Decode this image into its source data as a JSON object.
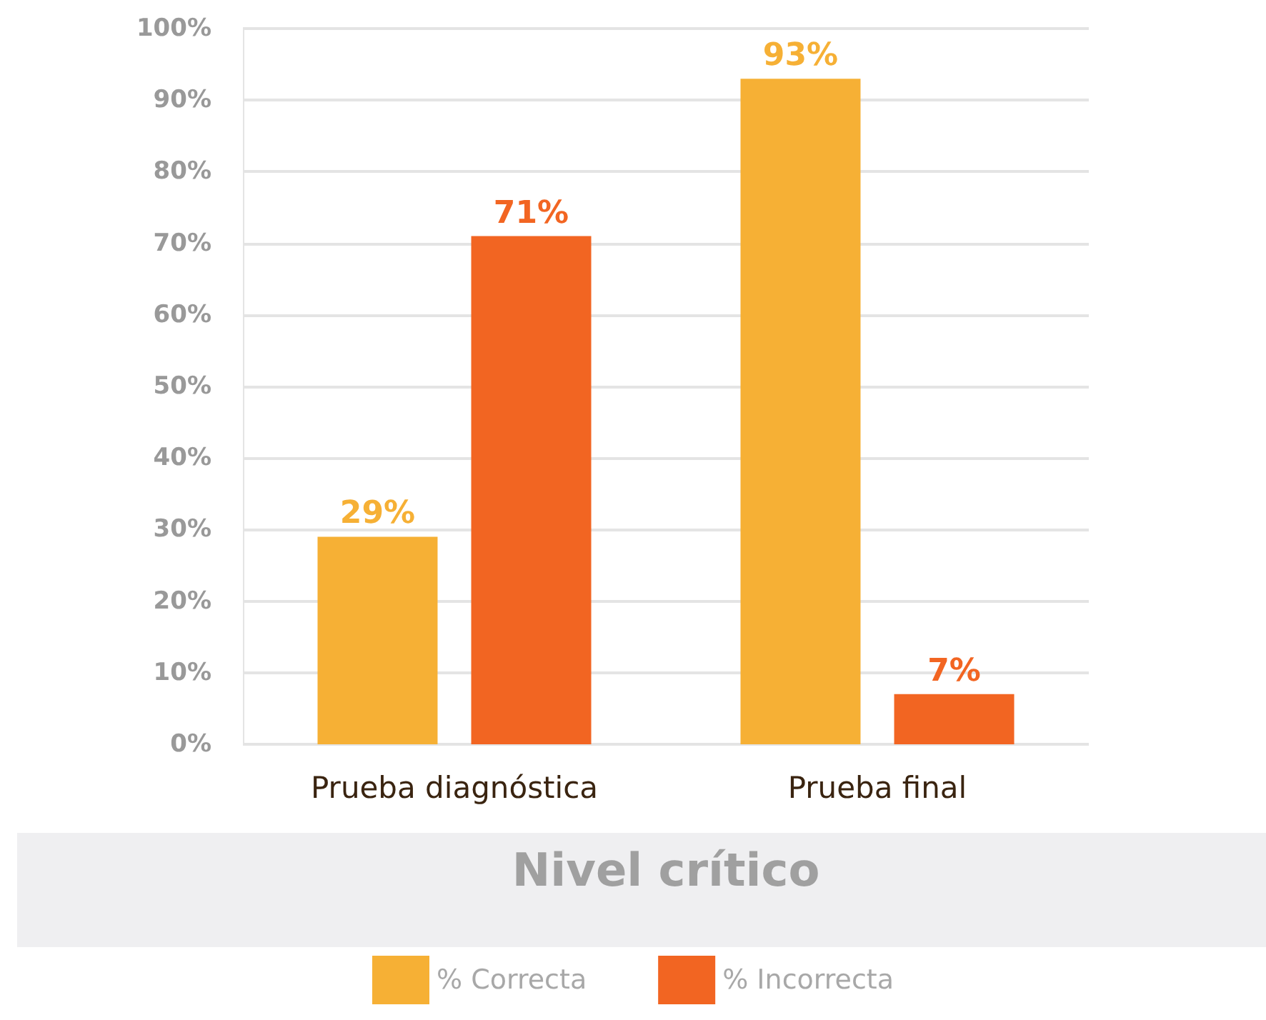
{
  "chart_data": {
    "type": "bar",
    "xlabel": "Nivel crítico",
    "categories": [
      "Prueba diagnóstica",
      "Prueba final"
    ],
    "series": [
      {
        "name": "% Correcta",
        "color": "#f6b035",
        "values": [
          29,
          93
        ],
        "value_labels": [
          "29%",
          "93%"
        ]
      },
      {
        "name": "% Incorrecta",
        "color": "#f26522",
        "values": [
          71,
          7
        ],
        "value_labels": [
          "71%",
          "7%"
        ]
      }
    ],
    "ylim": [
      0,
      100
    ],
    "yticks": [
      {
        "value": 0,
        "label": "0%"
      },
      {
        "value": 10,
        "label": "10%"
      },
      {
        "value": 20,
        "label": "20%"
      },
      {
        "value": 30,
        "label": "30%"
      },
      {
        "value": 40,
        "label": "40%"
      },
      {
        "value": 50,
        "label": "50%"
      },
      {
        "value": 60,
        "label": "60%"
      },
      {
        "value": 70,
        "label": "70%"
      },
      {
        "value": 80,
        "label": "80%"
      },
      {
        "value": 90,
        "label": "90%"
      },
      {
        "value": 100,
        "label": "100%"
      }
    ],
    "grid": "y",
    "legend": "bottom"
  }
}
